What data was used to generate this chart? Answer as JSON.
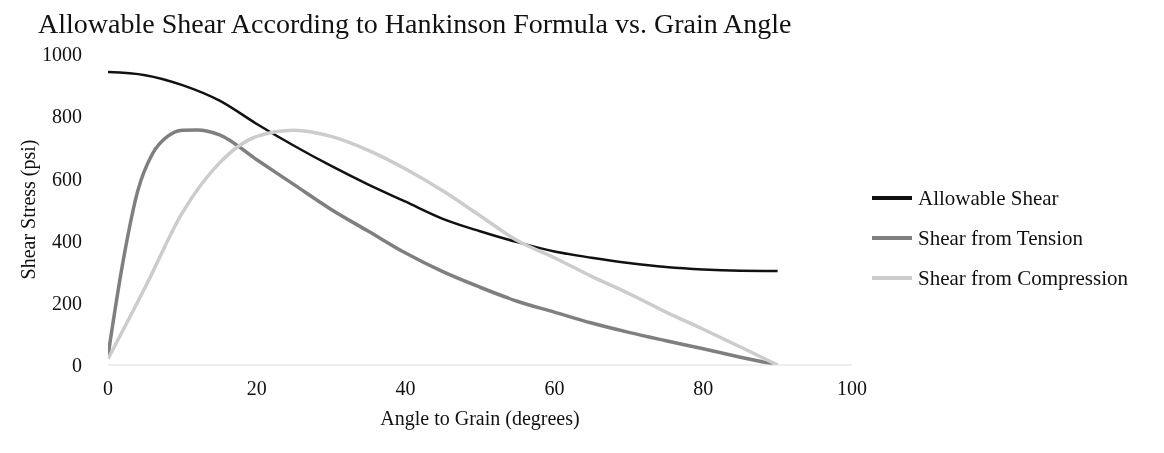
{
  "chart_data": {
    "type": "line",
    "title": "Allowable Shear According to Hankinson Formula vs. Grain Angle",
    "xlabel": "Angle to Grain (degrees)",
    "ylabel": "Shear Stress (psi)",
    "xlim": [
      0,
      100
    ],
    "xticks": [
      0,
      20,
      40,
      60,
      80,
      100
    ],
    "ylim": [
      0,
      1000
    ],
    "yticks": [
      0,
      200,
      400,
      600,
      800,
      1000
    ],
    "grid": false,
    "legend": "right",
    "marker": "none",
    "line_style": "solid",
    "series": [
      {
        "name": "Allowable Shear",
        "color": "#111111",
        "x": [
          0,
          5,
          10,
          15,
          20,
          25,
          30,
          35,
          40,
          45,
          50,
          55,
          60,
          65,
          70,
          75,
          80,
          85,
          90
        ],
        "values": [
          942,
          932,
          900,
          850,
          775,
          705,
          640,
          580,
          525,
          470,
          430,
          395,
          365,
          345,
          328,
          315,
          307,
          303,
          302
        ]
      },
      {
        "name": "Shear from Tension",
        "color": "#7f7f7f",
        "x": [
          0,
          2,
          4,
          6,
          8,
          10,
          12,
          15,
          20,
          25,
          30,
          35,
          40,
          45,
          50,
          55,
          60,
          65,
          70,
          75,
          80,
          85,
          90
        ],
        "values": [
          30,
          330,
          560,
          680,
          735,
          755,
          756,
          740,
          660,
          580,
          500,
          430,
          360,
          300,
          250,
          205,
          170,
          135,
          105,
          78,
          52,
          25,
          0
        ]
      },
      {
        "name": "Shear from Compression",
        "color": "#cccccc",
        "x": [
          0,
          5,
          10,
          15,
          20,
          25,
          30,
          35,
          40,
          45,
          50,
          55,
          60,
          65,
          70,
          75,
          80,
          85,
          90
        ],
        "values": [
          20,
          250,
          490,
          650,
          735,
          755,
          735,
          690,
          630,
          560,
          480,
          400,
          345,
          285,
          230,
          170,
          115,
          58,
          0
        ]
      }
    ]
  }
}
